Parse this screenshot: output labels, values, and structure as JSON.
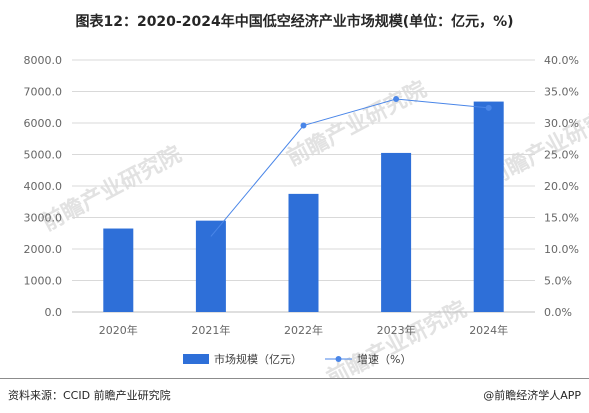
{
  "title": "图表12：2020-2024年中国低空经济产业市场规模(单位：亿元，%)",
  "watermark": "前瞻产业研究院",
  "source_label": "资料来源：CCID 前瞻产业研究院",
  "brand": "@前瞻经济学人APP",
  "colors": {
    "bar": "#2e6fd8",
    "line": "#4a86e8",
    "grid": "#d9d9d9"
  },
  "chart_data": {
    "type": "bar",
    "title": "图表12：2020-2024年中国低空经济产业市场规模(单位：亿元，%)",
    "categories": [
      "2020年",
      "2021年",
      "2022年",
      "2023年",
      "2024年"
    ],
    "series": [
      {
        "name": "市场规模（亿元）",
        "type": "bar",
        "axis": "left",
        "values": [
          2650,
          2900,
          3750,
          5050,
          6680
        ]
      },
      {
        "name": "增速（%）",
        "type": "line",
        "axis": "right",
        "values": [
          null,
          12.0,
          29.6,
          33.8,
          32.4
        ]
      }
    ],
    "ylim_left": [
      0,
      8000
    ],
    "yticks_left": [
      "0.0",
      "1000.0",
      "2000.0",
      "3000.0",
      "4000.0",
      "5000.0",
      "6000.0",
      "7000.0",
      "8000.0"
    ],
    "ylim_right": [
      0,
      40
    ],
    "yticks_right": [
      "0.0%",
      "5.0%",
      "10.0%",
      "15.0%",
      "20.0%",
      "25.0%",
      "30.0%",
      "35.0%",
      "40.0%"
    ],
    "grid": true,
    "legend": "bottom"
  }
}
